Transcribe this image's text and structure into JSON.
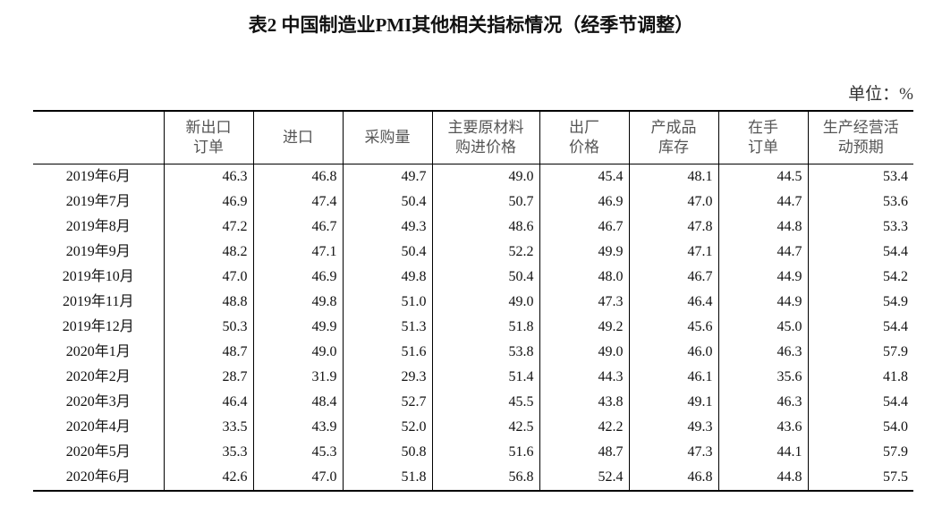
{
  "title": "表2 中国制造业PMI其他相关指标情况（经季节调整）",
  "unit": "单位：%",
  "table": {
    "headers": [
      [
        "新出口",
        "订单"
      ],
      [
        "进口"
      ],
      [
        "采购量"
      ],
      [
        "主要原材料",
        "购进价格"
      ],
      [
        "出厂",
        "价格"
      ],
      [
        "产成品",
        "库存"
      ],
      [
        "在手",
        "订单"
      ],
      [
        "生产经营活",
        "动预期"
      ]
    ],
    "rows": [
      [
        "2019年6月",
        "46.3",
        "46.8",
        "49.7",
        "49.0",
        "45.4",
        "48.1",
        "44.5",
        "53.4"
      ],
      [
        "2019年7月",
        "46.9",
        "47.4",
        "50.4",
        "50.7",
        "46.9",
        "47.0",
        "44.7",
        "53.6"
      ],
      [
        "2019年8月",
        "47.2",
        "46.7",
        "49.3",
        "48.6",
        "46.7",
        "47.8",
        "44.8",
        "53.3"
      ],
      [
        "2019年9月",
        "48.2",
        "47.1",
        "50.4",
        "52.2",
        "49.9",
        "47.1",
        "44.7",
        "54.4"
      ],
      [
        "2019年10月",
        "47.0",
        "46.9",
        "49.8",
        "50.4",
        "48.0",
        "46.7",
        "44.9",
        "54.2"
      ],
      [
        "2019年11月",
        "48.8",
        "49.8",
        "51.0",
        "49.0",
        "47.3",
        "46.4",
        "44.9",
        "54.9"
      ],
      [
        "2019年12月",
        "50.3",
        "49.9",
        "51.3",
        "51.8",
        "49.2",
        "45.6",
        "45.0",
        "54.4"
      ],
      [
        "2020年1月",
        "48.7",
        "49.0",
        "51.6",
        "53.8",
        "49.0",
        "46.0",
        "46.3",
        "57.9"
      ],
      [
        "2020年2月",
        "28.7",
        "31.9",
        "29.3",
        "51.4",
        "44.3",
        "46.1",
        "35.6",
        "41.8"
      ],
      [
        "2020年3月",
        "46.4",
        "48.4",
        "52.7",
        "45.5",
        "43.8",
        "49.1",
        "46.3",
        "54.4"
      ],
      [
        "2020年4月",
        "33.5",
        "43.9",
        "52.0",
        "42.5",
        "42.2",
        "49.3",
        "43.6",
        "54.0"
      ],
      [
        "2020年5月",
        "35.3",
        "45.3",
        "50.8",
        "51.6",
        "48.7",
        "47.3",
        "44.1",
        "57.9"
      ],
      [
        "2020年6月",
        "42.6",
        "47.0",
        "51.8",
        "56.8",
        "52.4",
        "46.8",
        "44.8",
        "57.5"
      ]
    ]
  }
}
